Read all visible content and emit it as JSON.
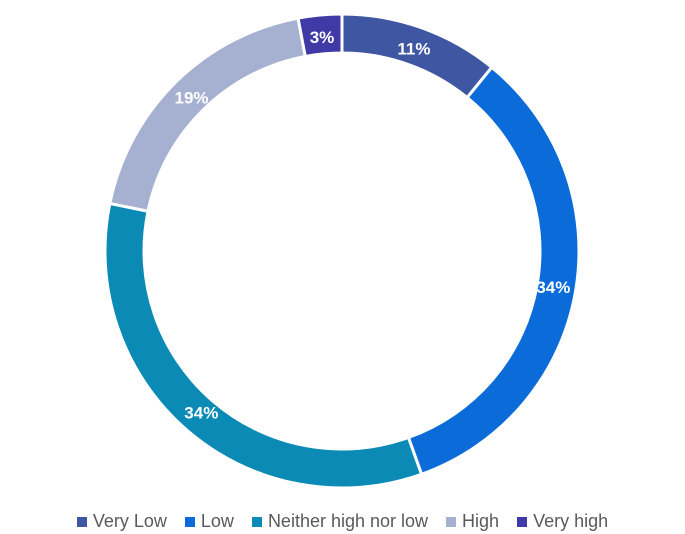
{
  "chart_data": {
    "type": "pie",
    "subtype": "donut",
    "categories": [
      "Very Low",
      "Low",
      "Neither high nor low",
      "High",
      "Very high"
    ],
    "values": [
      11,
      34,
      34,
      19,
      3
    ],
    "data_labels": [
      "11%",
      "34%",
      "34%",
      "19%",
      "3%"
    ],
    "colors": [
      "#3F56A3",
      "#0B6BD8",
      "#0A8AB4",
      "#A6B1D1",
      "#3F3AA6"
    ],
    "title": "",
    "legend": "bottom",
    "grid": false
  }
}
